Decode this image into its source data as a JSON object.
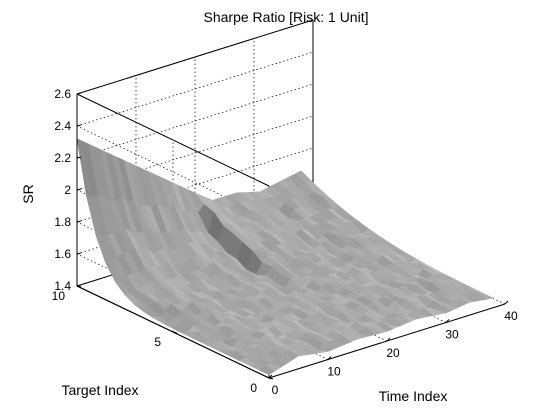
{
  "chart_data": {
    "type": "surface",
    "title": "Sharpe Ratio [Risk: 1 Unit]",
    "xlabel": "Time Index",
    "ylabel": "Target Index",
    "zlabel": "SR",
    "xlim": [
      0,
      40
    ],
    "ylim": [
      0,
      10
    ],
    "zlim": [
      1.4,
      2.6
    ],
    "x_ticks": [
      "0",
      "10",
      "20",
      "30",
      "40"
    ],
    "y_ticks": [
      "0",
      "5",
      "10"
    ],
    "z_ticks": [
      "1.4",
      "1.6",
      "1.8",
      "2",
      "2.2",
      "2.4",
      "2.6"
    ],
    "grid": true,
    "surface_color": "#9a9a9a",
    "surface_edges": [
      {
        "name": "back_edge_target_10",
        "y": 10,
        "points": [
          [
            0,
            2.32
          ],
          [
            20,
            1.75
          ],
          [
            23,
            1.67
          ],
          [
            27,
            1.67
          ],
          [
            31,
            1.63
          ],
          [
            35,
            1.66
          ],
          [
            38,
            1.68
          ]
        ]
      },
      {
        "name": "front_edge_target_0",
        "y": 0,
        "points": [
          [
            0,
            1.42
          ],
          [
            5,
            1.48
          ],
          [
            10,
            1.45
          ],
          [
            15,
            1.47
          ],
          [
            20,
            1.46
          ],
          [
            25,
            1.48
          ],
          [
            30,
            1.46
          ],
          [
            34,
            1.48
          ],
          [
            38,
            1.46
          ]
        ]
      },
      {
        "name": "left_edge_time_0",
        "x": 0,
        "points": [
          [
            10,
            2.32
          ],
          [
            9.6,
            1.8
          ],
          [
            8,
            1.68
          ],
          [
            6,
            1.62
          ],
          [
            4,
            1.58
          ],
          [
            2,
            1.54
          ],
          [
            0,
            1.42
          ]
        ]
      },
      {
        "name": "right_edge_time_38",
        "x": 38,
        "points": [
          [
            10,
            1.68
          ],
          [
            8,
            1.62
          ],
          [
            6,
            1.56
          ],
          [
            4,
            1.5
          ],
          [
            2,
            1.47
          ],
          [
            0,
            1.46
          ]
        ]
      }
    ]
  }
}
